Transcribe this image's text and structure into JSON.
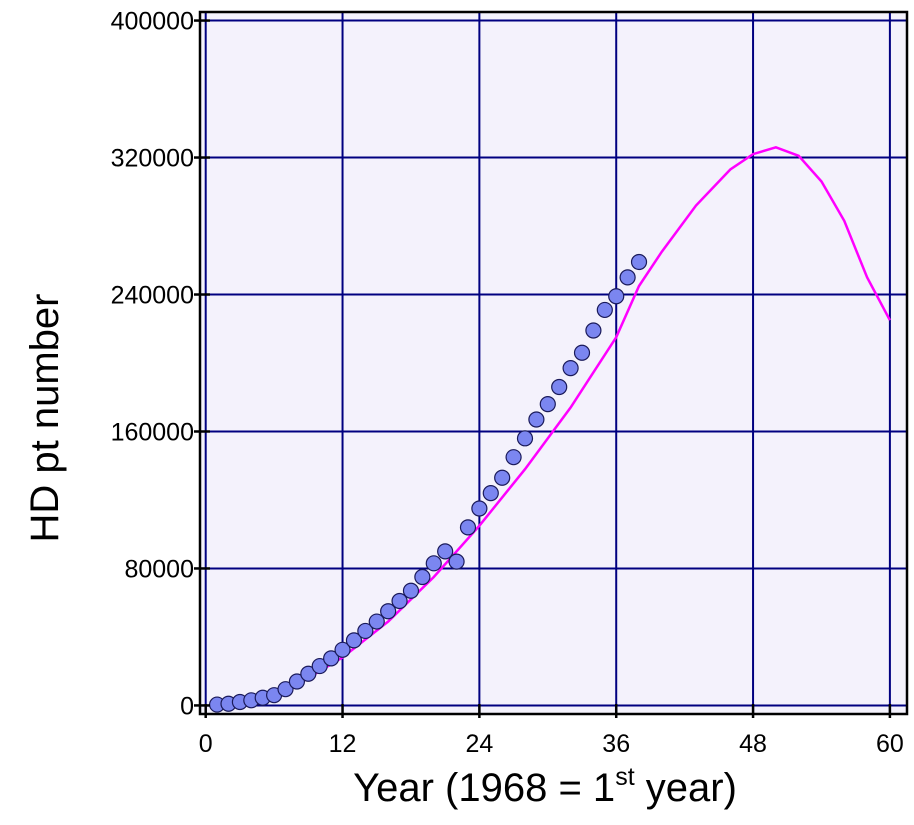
{
  "chart_data": {
    "type": "scatter",
    "title": "",
    "xlabel": "Year (1968 = 1",
    "xlabel_sup": "st",
    "xlabel_tail": " year)",
    "ylabel": "HD pt number",
    "xlim": [
      -0.5,
      61.5
    ],
    "ylim": [
      -5000,
      405000
    ],
    "xticks": [
      0,
      12,
      24,
      36,
      48,
      60
    ],
    "yticks": [
      0,
      80000,
      160000,
      240000,
      320000,
      400000
    ],
    "xtick_labels": [
      "0",
      "12",
      "24",
      "36",
      "48",
      "60"
    ],
    "ytick_labels": [
      "0",
      "80000",
      "160000",
      "240000",
      "320000",
      "400000"
    ],
    "grid": true,
    "background_color": "#f4f2fc",
    "grid_color": "#000080",
    "series": [
      {
        "kind": "points",
        "marker_color": "#7b86f0",
        "x": [
          1,
          2,
          3,
          4,
          5,
          6,
          7,
          8,
          9,
          10,
          11,
          12,
          13,
          14,
          15,
          16,
          17,
          18,
          19,
          20,
          21,
          22,
          23,
          24,
          25,
          26,
          27,
          28,
          29,
          30,
          31,
          32,
          33,
          34,
          35,
          36,
          37,
          38
        ],
        "y": [
          500,
          1000,
          2000,
          3000,
          4500,
          6000,
          9500,
          14000,
          18500,
          23000,
          27500,
          32500,
          38000,
          43500,
          49000,
          55000,
          61000,
          67000,
          75000,
          83000,
          90000,
          84000,
          104000,
          115000,
          124000,
          133000,
          145000,
          156000,
          167000,
          176000,
          186000,
          197000,
          206000,
          219000,
          231000,
          239000,
          250000,
          259000
        ]
      },
      {
        "kind": "curve",
        "line_color": "#ff00ff",
        "x": [
          1,
          4,
          8,
          12,
          16,
          20,
          24,
          28,
          32,
          36,
          38,
          40,
          43,
          46,
          48,
          50,
          52,
          54,
          56,
          58,
          60
        ],
        "y": [
          0,
          2500,
          12000,
          28000,
          49000,
          75000,
          105000,
          138000,
          174000,
          215000,
          245000,
          265000,
          292000,
          313000,
          322000,
          326000,
          321000,
          306000,
          283000,
          250000,
          225000
        ]
      }
    ]
  }
}
